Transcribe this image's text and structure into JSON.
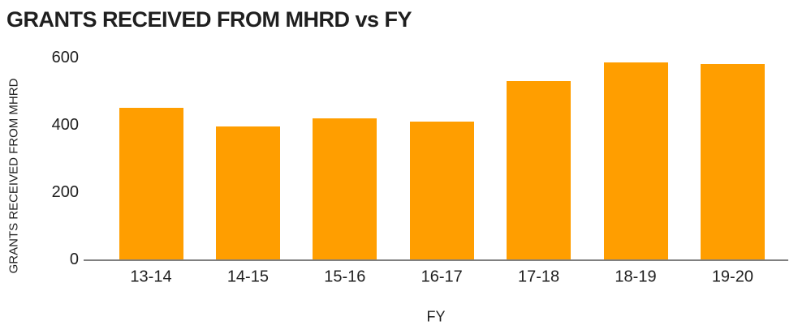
{
  "chart_data": {
    "type": "bar",
    "title": "GRANTS RECEIVED FROM MHRD vs FY",
    "xlabel": "FY",
    "ylabel": "GRANTS RECEIVED FROM MHRD",
    "categories": [
      "13-14",
      "14-15",
      "15-16",
      "16-17",
      "17-18",
      "18-19",
      "19-20"
    ],
    "values": [
      450,
      395,
      420,
      410,
      530,
      585,
      580
    ],
    "ylim": [
      0,
      600
    ],
    "yticks": [
      0,
      200,
      400,
      600
    ],
    "grid": false,
    "legend": false,
    "bar_color": "#FF9E00",
    "axis_line_color": "#808080",
    "text_color": "#1f1f1f",
    "background_color": "#FFFFFF"
  }
}
